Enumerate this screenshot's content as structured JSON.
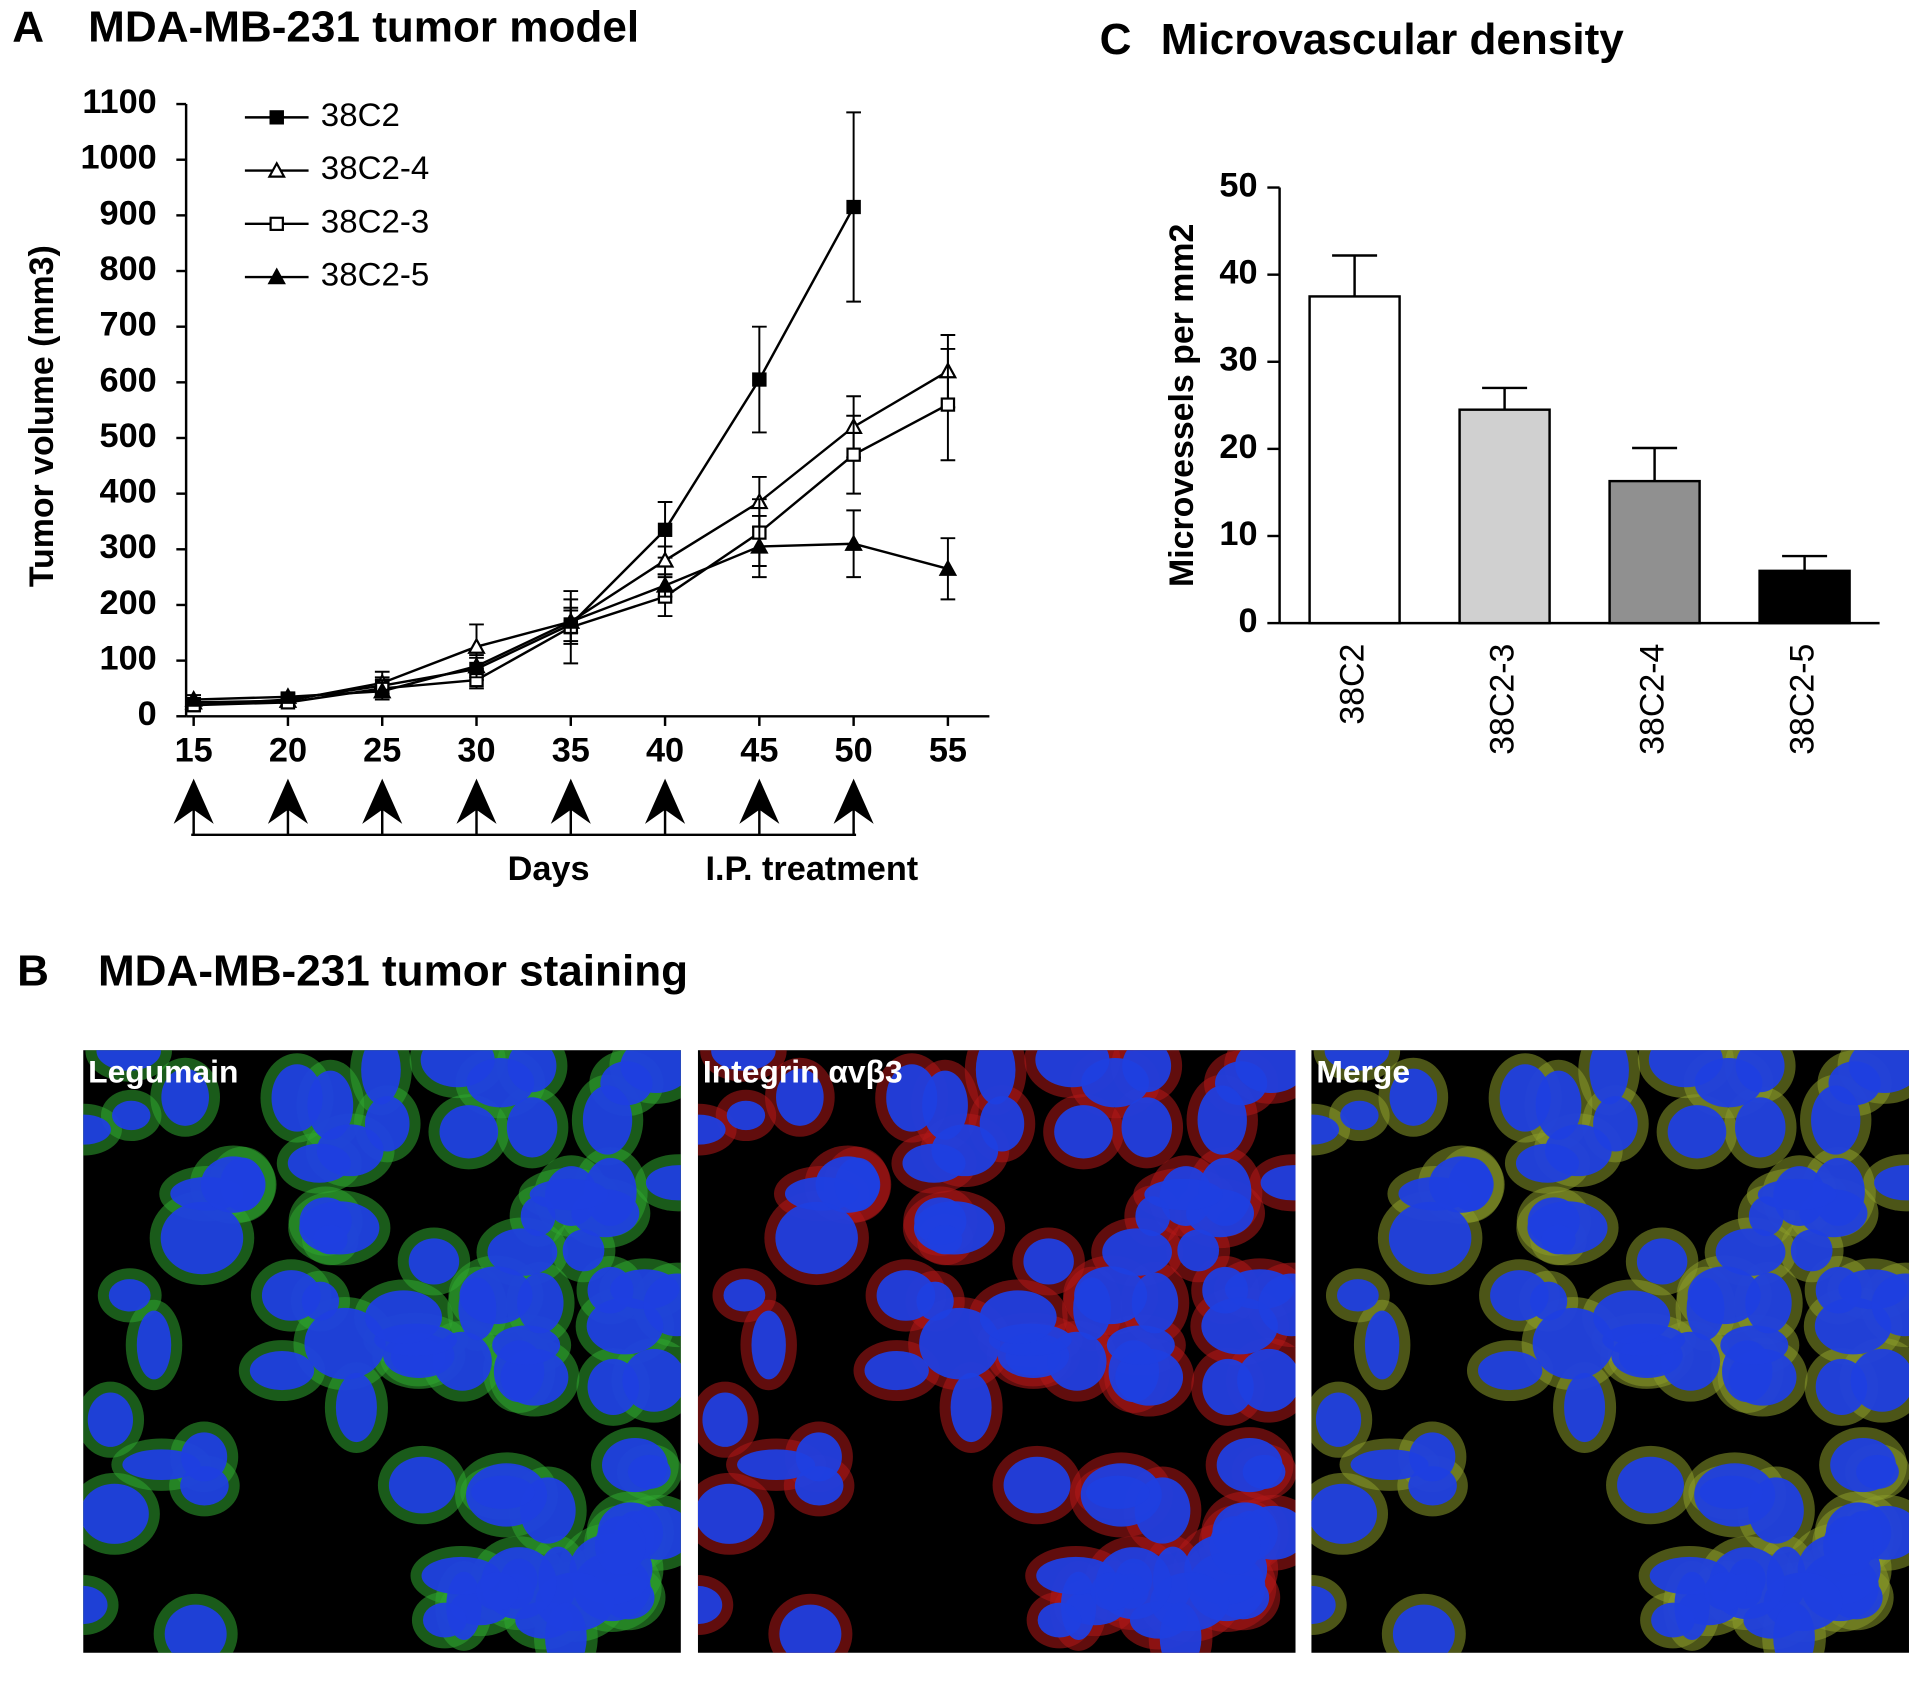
{
  "panel_labels": {
    "a": "A",
    "b": "B",
    "c": "C"
  },
  "chart_data": [
    {
      "type": "line",
      "title": "MDA-MB-231 tumor model",
      "ylabel": "Tumor volume (mm3)",
      "x": [
        15,
        20,
        25,
        30,
        35,
        40,
        45,
        50,
        55
      ],
      "xlim": [
        14.6,
        57.2
      ],
      "xticks": [
        15,
        20,
        25,
        30,
        35,
        40,
        45,
        50,
        55
      ],
      "ylim": [
        0,
        1100
      ],
      "yticks": [
        0,
        100,
        200,
        300,
        400,
        500,
        600,
        700,
        800,
        900,
        1000,
        1100
      ],
      "series": [
        {
          "name": "38C2",
          "color": "#000000",
          "marker": "filled-square",
          "values": [
            20,
            30,
            55,
            85,
            165,
            335,
            605,
            915,
            null
          ],
          "errors": [
            10,
            10,
            15,
            20,
            30,
            50,
            95,
            170,
            null
          ]
        },
        {
          "name": "38C2-4",
          "color": "#000000",
          "marker": "open-triangle",
          "values": [
            25,
            28,
            60,
            125,
            170,
            280,
            385,
            520,
            620
          ],
          "errors": [
            8,
            8,
            20,
            40,
            40,
            25,
            45,
            55,
            65
          ]
        },
        {
          "name": "38C2-3",
          "color": "#000000",
          "marker": "open-square",
          "values": [
            20,
            25,
            50,
            65,
            160,
            215,
            330,
            470,
            560
          ],
          "errors": [
            8,
            8,
            15,
            15,
            65,
            35,
            60,
            70,
            100
          ]
        },
        {
          "name": "38C2-5",
          "color": "#000000",
          "marker": "filled-triangle",
          "values": [
            30,
            35,
            45,
            90,
            170,
            235,
            305,
            310,
            265
          ],
          "errors": [
            8,
            8,
            15,
            20,
            20,
            20,
            55,
            60,
            55
          ]
        }
      ],
      "treatment_days": [
        15,
        20,
        25,
        30,
        35,
        40,
        45,
        50
      ],
      "annotations": [
        "Days",
        "I.P. treatment"
      ]
    },
    {
      "type": "bar",
      "title": "Microvascular density",
      "ylabel": "Microvessels per mm2",
      "categories": [
        "38C2",
        "38C2-3",
        "38C2-4",
        "38C2-5"
      ],
      "values": [
        37.5,
        24.5,
        16.3,
        6
      ],
      "errors": [
        4.7,
        2.5,
        3.8,
        1.7
      ],
      "colors": [
        "#ffffff",
        "#d0d0d0",
        "#909090",
        "#000000"
      ],
      "ylim": [
        0,
        50
      ],
      "yticks": [
        0,
        10,
        20,
        30,
        40,
        50
      ]
    }
  ],
  "panel_b": {
    "title": "MDA-MB-231 tumor staining",
    "images": [
      "Legumain",
      "Integrin αvβ3",
      "Merge"
    ]
  }
}
